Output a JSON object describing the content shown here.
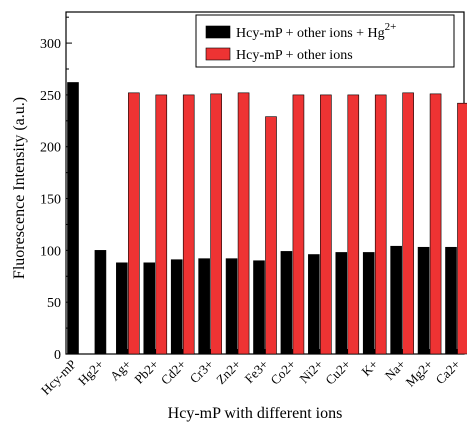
{
  "chart_data": {
    "type": "bar",
    "xlabel": "Hcy-mP with different ions",
    "ylabel": "Fluorescence Intensity  (a.u.)",
    "ylim": [
      0,
      330
    ],
    "yticks": [
      0,
      50,
      100,
      150,
      200,
      250,
      300
    ],
    "grid": false,
    "legend_position": "top-right",
    "categories": [
      "Hcy-mP",
      "Hg2+",
      "Ag+",
      "Pb2+",
      "Cd2+",
      "Cr3+",
      "Zn2+",
      "Fe3+",
      "Co2+",
      "Ni2+",
      "Cu2+",
      "K+",
      "Na+",
      "Mg2+",
      "Ca2+"
    ],
    "series": [
      {
        "name": "Hcy-mP + other ions + Hg2+",
        "color": "#000000",
        "values": [
          262,
          100,
          88,
          88,
          91,
          92,
          92,
          90,
          99,
          96,
          98,
          98,
          104,
          103,
          103
        ]
      },
      {
        "name": "Hcy-mP + other ions",
        "color": "#ee3333",
        "values": [
          null,
          null,
          252,
          250,
          250,
          251,
          252,
          229,
          250,
          250,
          250,
          250,
          252,
          251,
          242
        ]
      }
    ]
  }
}
